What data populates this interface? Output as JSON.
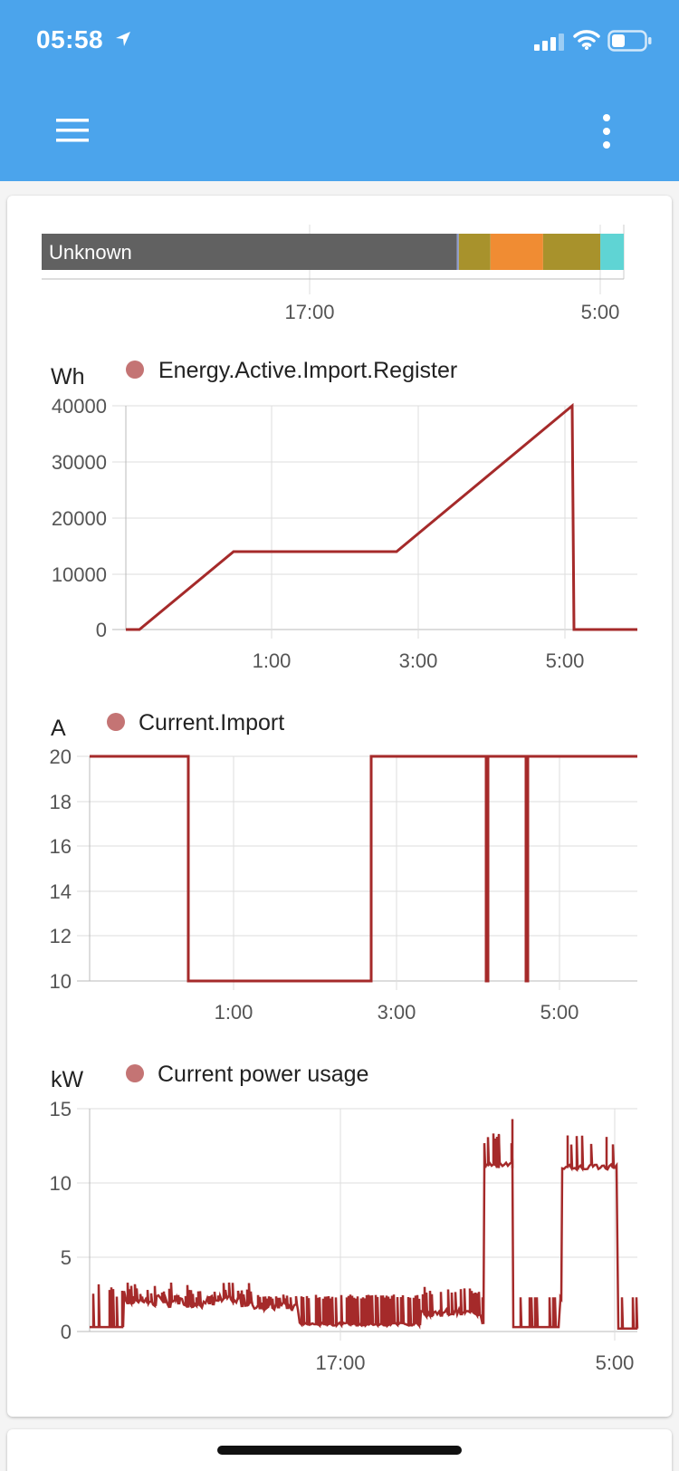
{
  "status_bar": {
    "time": "05:58",
    "icons": [
      "location-arrow-icon",
      "cellular-signal-icon",
      "wifi-icon",
      "battery-icon"
    ]
  },
  "toolbar": {
    "menu_icon": "hamburger-menu-icon",
    "more_icon": "more-vertical-icon",
    "background_color": "#4ba4ec"
  },
  "timeline": {
    "first_segment_label": "Unknown",
    "tick_labels": [
      "17:00",
      "5:00"
    ],
    "segments": [
      {
        "state": "Unknown",
        "color": "#616161",
        "start": 0.0,
        "end": 0.7134
      },
      {
        "state": "",
        "color": "#8a9ad1",
        "start": 0.7134,
        "end": 0.7166
      },
      {
        "state": "",
        "color": "#a8922c",
        "start": 0.7166,
        "end": 0.771
      },
      {
        "state": "",
        "color": "#f08c33",
        "start": 0.771,
        "end": 0.8614
      },
      {
        "state": "",
        "color": "#a8922c",
        "start": 0.8614,
        "end": 0.9598
      },
      {
        "state": "",
        "color": "#5fd4d4",
        "start": 0.9598,
        "end": 1.0
      }
    ]
  },
  "chart_data": [
    {
      "type": "line",
      "ylabel": "Wh",
      "series": [
        {
          "name": "Energy.Active.Import.Register",
          "color": "#a52a2a",
          "x": [
            "23:48",
            "24:03",
            "0:48",
            "2:38",
            "5:04",
            "5:05",
            "5:59"
          ],
          "values": [
            0,
            0,
            13800,
            13800,
            40000,
            0,
            0
          ]
        }
      ],
      "ylim": [
        0,
        40000
      ],
      "yticks": [
        "40000",
        "30000",
        "20000",
        "10000",
        "0"
      ],
      "xticks": [
        "1:00",
        "3:00",
        "5:00"
      ],
      "grid": true,
      "legend": "top"
    },
    {
      "type": "line",
      "ylabel": "A",
      "series": [
        {
          "name": "Current.Import",
          "color": "#a52a2a",
          "x": [
            "23:13",
            "0:25",
            "0:25",
            "2:40",
            "2:40",
            "4:05",
            "4:05",
            "4:06",
            "4:06",
            "4:35",
            "4:35",
            "4:36",
            "4:36",
            "5:59"
          ],
          "values": [
            20,
            20,
            10,
            10,
            20,
            20,
            10,
            10,
            20,
            20,
            10,
            10,
            20,
            20
          ]
        }
      ],
      "ylim": [
        10,
        20
      ],
      "yticks": [
        "20",
        "18",
        "16",
        "14",
        "12",
        "10"
      ],
      "xticks": [
        "1:00",
        "3:00",
        "5:00"
      ],
      "grid": true,
      "legend": "top"
    },
    {
      "type": "line",
      "ylabel": "kW",
      "series": [
        {
          "name": "Current power usage",
          "color": "#a52a2a",
          "x": [
            "06:00",
            "07:30",
            "08:30",
            "09:00",
            "11:00",
            "12:00",
            "13:30",
            "15:00",
            "16:30",
            "18:00",
            "20:00",
            "21:30",
            "23:00",
            "23:40",
            "24:00",
            "25:30",
            "26:30",
            "27:30",
            "29:00",
            "29:10"
          ],
          "values": [
            0.2,
            2.6,
            2.2,
            4.4,
            1.9,
            3.7,
            2.0,
            2.0,
            2.2,
            0.3,
            0.3,
            0.4,
            2.4,
            2.2,
            11.2,
            0.2,
            0.2,
            11.0,
            11.2,
            0.2
          ],
          "peaks": [
            13.3,
            14.3,
            13.2,
            13.1
          ]
        }
      ],
      "ylim": [
        0,
        15
      ],
      "yticks": [
        "15",
        "10",
        "5",
        "0"
      ],
      "xticks": [
        "17:00",
        "5:00"
      ],
      "grid": true,
      "legend": "top"
    }
  ]
}
